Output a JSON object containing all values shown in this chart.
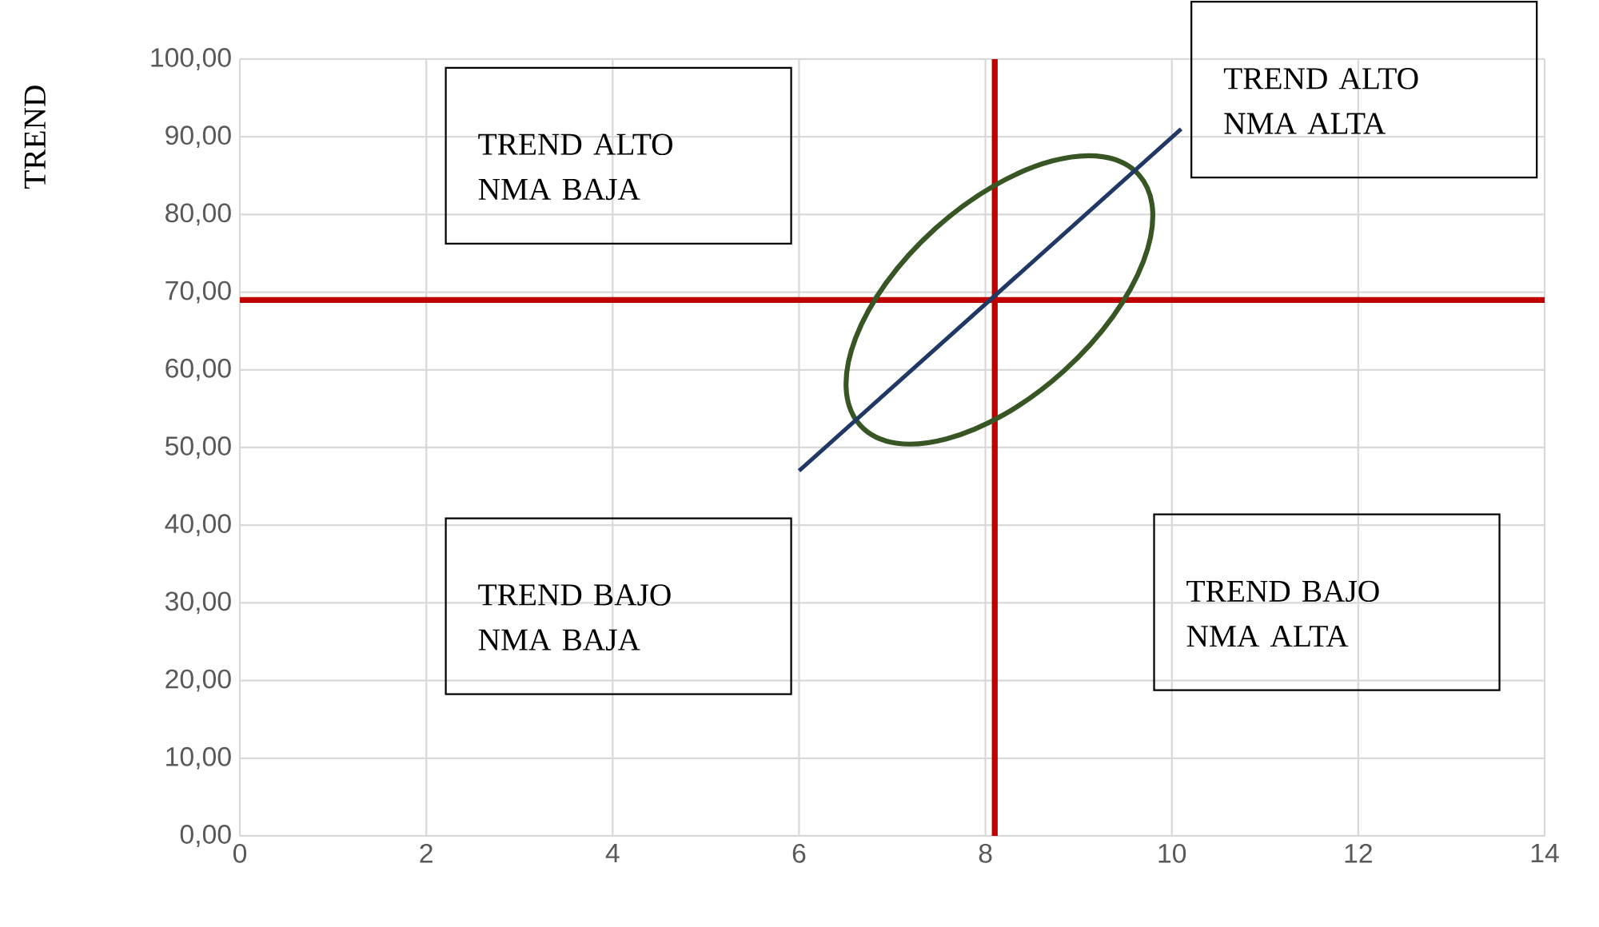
{
  "chart_data": {
    "type": "line",
    "ylabel": "TREND",
    "xlim": [
      0,
      14
    ],
    "xticks": [
      0,
      2,
      4,
      6,
      8,
      10,
      12,
      14
    ],
    "ylim": [
      0,
      100
    ],
    "yticks": [
      {
        "value": 0,
        "label": "0,00"
      },
      {
        "value": 10,
        "label": "10,00"
      },
      {
        "value": 20,
        "label": "20,00"
      },
      {
        "value": 30,
        "label": "30,00"
      },
      {
        "value": 40,
        "label": "40,00"
      },
      {
        "value": 50,
        "label": "50,00"
      },
      {
        "value": 60,
        "label": "60,00"
      },
      {
        "value": 70,
        "label": "70,00"
      },
      {
        "value": 80,
        "label": "80,00"
      },
      {
        "value": 90,
        "label": "90,00"
      },
      {
        "value": 100,
        "label": "100,00"
      }
    ],
    "grid": true,
    "marker": "none",
    "line_style": "solid",
    "series": [
      {
        "color": "#203864",
        "x": [
          6,
          10.1
        ],
        "values": [
          47,
          91
        ]
      }
    ],
    "ref_lines": [
      {
        "axis": "x",
        "value": 8.1,
        "color": "#c00000"
      },
      {
        "axis": "y",
        "value": 69,
        "color": "#c00000"
      }
    ],
    "annotations": [
      "TREND ALTO NMA BAJA",
      "TREND ALTO NMA ALTA",
      "TREND BAJO NMA BAJA",
      "TREND BAJO NMA ALTA"
    ]
  }
}
